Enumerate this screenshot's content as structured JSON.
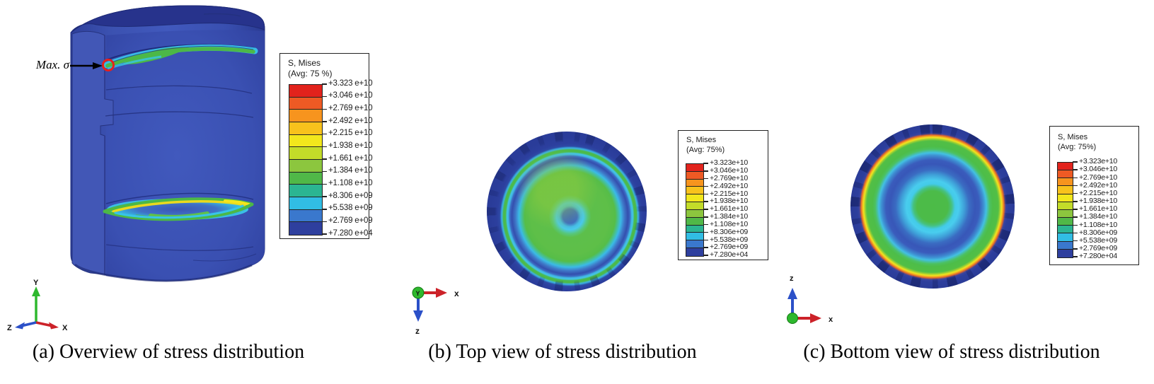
{
  "panel_a": {
    "caption": "(a) Overview of stress distribution",
    "annotation": "Max. σ",
    "axis": {
      "up": "Y",
      "right": "X",
      "left": "Z"
    }
  },
  "panel_b": {
    "caption": "(b) Top view of stress distribution",
    "axis": {
      "origin": "Y",
      "right": "x",
      "down": "z"
    }
  },
  "panel_c": {
    "caption": "(c) Bottom view of stress distribution",
    "axis": {
      "up": "z",
      "right": "x"
    }
  },
  "legend_a": {
    "title": "S, Mises",
    "subtitle": "(Avg: 75 %)",
    "values": [
      "+3.323 e+10",
      "+3.046 e+10",
      "+2.769 e+10",
      "+2.492 e+10",
      "+2.215 e+10",
      "+1.938 e+10",
      "+1.661 e+10",
      "+1.384 e+10",
      "+1.108 e+10",
      "+8.306 e+09",
      "+5.538 e+09",
      "+2.769 e+09",
      "+7.280 e+04"
    ]
  },
  "legend_b": {
    "title": "S, Mises",
    "subtitle": "(Avg: 75%)",
    "values": [
      "+3.323e+10",
      "+3.046e+10",
      "+2.769e+10",
      "+2.492e+10",
      "+2.215e+10",
      "+1.938e+10",
      "+1.661e+10",
      "+1.384e+10",
      "+1.108e+10",
      "+8.306e+09",
      "+5.538e+09",
      "+2.769e+09",
      "+7.280e+04"
    ]
  },
  "legend_c": {
    "title": "S, Mises",
    "subtitle": "(Avg: 75%)",
    "values": [
      "+3.323e+10",
      "+3.046e+10",
      "+2.769e+10",
      "+2.492e+10",
      "+2.215e+10",
      "+1.938e+10",
      "+1.661e+10",
      "+1.384e+10",
      "+1.108e+10",
      "+8.306e+09",
      "+5.538e+09",
      "+2.769e+09",
      "+7.280e+04"
    ]
  },
  "colorbar": {
    "colors_top_to_bottom": [
      "#e2231c",
      "#ee5a24",
      "#f7941e",
      "#f8c21c",
      "#f2e71c",
      "#c3dc29",
      "#8cc63e",
      "#50b848",
      "#2bb592",
      "#31bde4",
      "#3a78cd",
      "#2e3f9e"
    ]
  },
  "palette": {
    "body_blue": "#3a50b2",
    "rim_navy": "#2b3c98",
    "stress_green": "#4cb847",
    "stress_cyan": "#38c4e8",
    "stress_yellow": "#ead91e",
    "stress_orange": "#e8742a",
    "max_marker_red": "#e8201d",
    "axis_x_red": "#cc2229",
    "axis_y_green": "#2eb82e",
    "axis_z_blue": "#2b50c8"
  }
}
